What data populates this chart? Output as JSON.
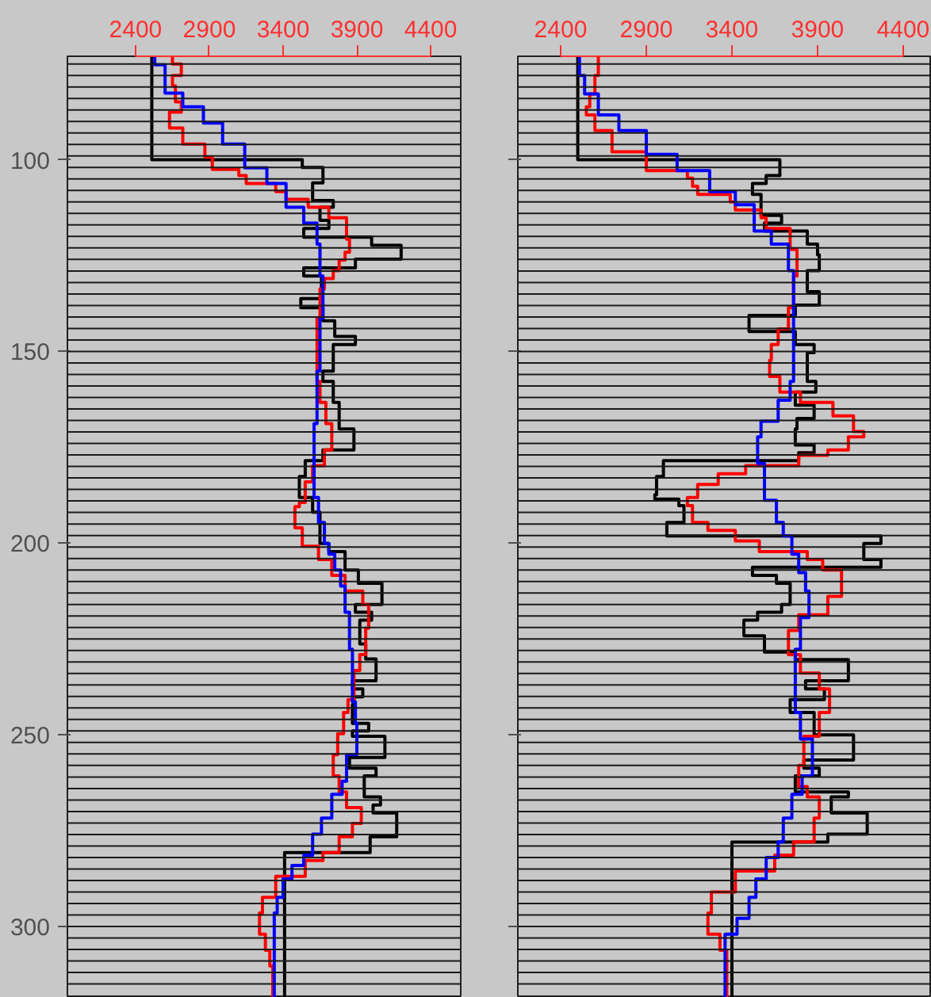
{
  "chart_data": [
    {
      "type": "line",
      "xlim": [
        1938,
        4604
      ],
      "ylim": [
        318.6,
        73
      ],
      "xticks": [
        2400,
        2900,
        3400,
        3900,
        4400
      ],
      "yticks": [
        100,
        150,
        200,
        250,
        300
      ],
      "series": [
        {
          "color": "#000000",
          "x": [
            2510,
            2510,
            3530,
            3530,
            3670,
            3670,
            3600,
            3600,
            3740,
            3740,
            3650,
            3650,
            3710,
            3710,
            3540,
            3540,
            4000,
            4000,
            4200,
            4200,
            3890,
            3890,
            3540,
            3540,
            3660,
            3660,
            3520,
            3520,
            3670,
            3670,
            3750,
            3750,
            3890,
            3890,
            3740,
            3740,
            3670,
            3670,
            3740,
            3740,
            3780,
            3780,
            3880,
            3880,
            3670,
            3670,
            3550,
            3550,
            3510,
            3510,
            3600,
            3600,
            3650,
            3650,
            3710,
            3710,
            3820,
            3820,
            3910,
            3910,
            4070,
            4070,
            3890,
            3890,
            4000,
            4000,
            3920,
            3920,
            3960,
            3960,
            4030,
            4030,
            3870,
            3870,
            3940,
            3940,
            3880,
            3880,
            3870,
            3870,
            3980,
            3980,
            3870,
            3870,
            4090,
            4090,
            3850,
            3850,
            4030,
            4030,
            3950,
            3950,
            4060,
            4060,
            4010,
            4010,
            4170,
            4170,
            3990,
            3990,
            3410,
            3410
          ],
          "values": [
            73,
            100,
            100,
            102,
            102,
            106,
            106,
            110.6,
            110.6,
            112.4,
            112.4,
            115.8,
            115.8,
            117.9,
            117.9,
            120.2,
            120.2,
            122.3,
            122.3,
            125.9,
            125.9,
            128.2,
            128.2,
            130.3,
            130.3,
            136.2,
            136.2,
            138.6,
            138.6,
            142,
            142,
            146.1,
            146.1,
            148.2,
            148.2,
            155.1,
            155.1,
            157.8,
            157.8,
            163.3,
            163.3,
            170.2,
            170.2,
            175.7,
            175.7,
            178.5,
            178.5,
            182.6,
            182.6,
            188.1,
            188.1,
            191.9,
            191.9,
            200.1,
            200.1,
            202.2,
            202.2,
            207,
            207,
            210.5,
            210.5,
            216,
            216,
            218,
            218,
            220.1,
            220.1,
            226.3,
            226.3,
            230.2,
            230.2,
            235.9,
            235.9,
            238,
            238,
            240.1,
            240.1,
            242.1,
            242.1,
            247,
            247,
            249,
            249,
            250.4,
            250.4,
            255.9,
            255.9,
            258.7,
            258.7,
            260.7,
            260.7,
            266.2,
            266.2,
            268.3,
            268.3,
            270.4,
            270.4,
            276.6,
            276.6,
            280.7,
            280.7,
            318.6
          ]
        },
        {
          "color": "#ff0000",
          "x": [
            2650,
            2650,
            2710,
            2710,
            2650,
            2650,
            2670,
            2670,
            2710,
            2710,
            2630,
            2630,
            2720,
            2720,
            2870,
            2870,
            2920,
            2920,
            3100,
            3100,
            3150,
            3150,
            3350,
            3350,
            3420,
            3420,
            3570,
            3570,
            3710,
            3710,
            3830,
            3830,
            3850,
            3850,
            3820,
            3820,
            3780,
            3780,
            3740,
            3740,
            3680,
            3680,
            3650,
            3650,
            3630,
            3630,
            3650,
            3650,
            3690,
            3690,
            3730,
            3730,
            3680,
            3680,
            3600,
            3600,
            3550,
            3550,
            3510,
            3510,
            3480,
            3480,
            3530,
            3530,
            3640,
            3640,
            3730,
            3730,
            3820,
            3820,
            3940,
            3940,
            3980,
            3980,
            3960,
            3960,
            3920,
            3920,
            3880,
            3880,
            3840,
            3840,
            3810,
            3810,
            3770,
            3770,
            3740,
            3740,
            3780,
            3780,
            3830,
            3830,
            3930,
            3930,
            3870,
            3870,
            3780,
            3780,
            3670,
            3670,
            3550,
            3550,
            3350,
            3350,
            3260,
            3260,
            3240,
            3240,
            3280,
            3280,
            3310,
            3310,
            3330,
            3330
          ],
          "values": [
            73,
            75,
            75,
            78,
            78,
            80.7,
            80.7,
            84.9,
            84.9,
            87.6,
            87.6,
            91.7,
            91.7,
            95.9,
            95.9,
            99.3,
            99.3,
            102.5,
            102.5,
            104.1,
            104.1,
            106.2,
            106.2,
            108.3,
            108.3,
            110.3,
            110.3,
            112.4,
            112.4,
            115.1,
            115.1,
            120.7,
            120.7,
            124.1,
            124.1,
            126.2,
            126.2,
            128.9,
            128.9,
            131,
            131,
            133.7,
            133.7,
            141.3,
            141.3,
            157.8,
            157.8,
            163.3,
            163.3,
            168.8,
            168.8,
            175.7,
            175.7,
            179.8,
            179.8,
            184,
            184,
            189.4,
            189.4,
            190.5,
            190.5,
            196,
            196,
            200.8,
            200.8,
            204.3,
            204.3,
            208.4,
            208.4,
            212.5,
            212.5,
            216,
            216,
            222.2,
            222.2,
            229.1,
            229.1,
            233.2,
            233.2,
            240.8,
            240.8,
            244.2,
            244.2,
            249.7,
            249.7,
            255.2,
            255.2,
            260.7,
            260.7,
            264.9,
            264.9,
            269,
            269,
            273.1,
            273.1,
            276.6,
            276.6,
            280.7,
            280.7,
            282.8,
            282.8,
            286.9,
            286.9,
            292.4,
            292.4,
            296.5,
            296.5,
            302,
            302,
            306.2,
            306.2,
            310.3,
            310.3,
            318.6
          ]
        },
        {
          "color": "#0000ff",
          "x": [
            2530,
            2530,
            2600,
            2600,
            2720,
            2720,
            2860,
            2860,
            2990,
            2990,
            3140,
            3140,
            3290,
            3290,
            3420,
            3420,
            3540,
            3540,
            3630,
            3630,
            3650,
            3650,
            3670,
            3670,
            3650,
            3650,
            3630,
            3630,
            3610,
            3610,
            3640,
            3640,
            3680,
            3680,
            3710,
            3710,
            3750,
            3750,
            3790,
            3790,
            3820,
            3820,
            3850,
            3850,
            3870,
            3870,
            3890,
            3890,
            3900,
            3900,
            3830,
            3830,
            3800,
            3800,
            3730,
            3730,
            3660,
            3660,
            3600,
            3600,
            3540,
            3540,
            3460,
            3460,
            3400,
            3400,
            3360,
            3360,
            3340,
            3340
          ],
          "values": [
            73,
            75.2,
            75.2,
            82.6,
            82.6,
            86.2,
            86.2,
            90.4,
            90.4,
            95.9,
            95.9,
            102.1,
            102.1,
            106.2,
            106.2,
            112.4,
            112.4,
            116.5,
            116.5,
            122,
            122,
            130.3,
            130.3,
            141.3,
            141.3,
            155.1,
            155.1,
            168.8,
            168.8,
            188.1,
            188.1,
            194.6,
            194.6,
            200.1,
            200.1,
            202.9,
            202.9,
            207,
            207,
            211.2,
            211.2,
            218,
            218,
            227.7,
            227.7,
            241.4,
            241.4,
            247,
            247,
            255.2,
            255.2,
            262.1,
            262.1,
            265.5,
            265.5,
            271.7,
            271.7,
            275.9,
            275.9,
            281.4,
            281.4,
            284.1,
            284.1,
            287.6,
            287.6,
            292.4,
            292.4,
            296.5,
            296.5,
            318.6
          ]
        }
      ],
      "ref_lines": [
        {
          "axis": "y",
          "value": 75,
          "color": "#1a1a1a"
        },
        {
          "axis": "y",
          "value": 78,
          "color": "#1a1a1a"
        },
        {
          "axis": "y",
          "value": 81,
          "color": "#1a1a1a"
        },
        {
          "axis": "y",
          "value": 84,
          "color": "#1a1a1a"
        },
        {
          "axis": "y",
          "value": 87,
          "color": "#1a1a1a"
        },
        {
          "axis": "y",
          "value": 90,
          "color": "#1a1a1a"
        },
        {
          "axis": "y",
          "value": 93,
          "color": "#1a1a1a"
        },
        {
          "axis": "y",
          "value": 96,
          "color": "#1a1a1a"
        },
        {
          "axis": "y",
          "value": 99,
          "color": "#1a1a1a"
        },
        {
          "axis": "y",
          "value": 102,
          "color": "#1a1a1a"
        },
        {
          "axis": "y",
          "value": 105,
          "color": "#1a1a1a"
        },
        {
          "axis": "y",
          "value": 108,
          "color": "#1a1a1a"
        },
        {
          "axis": "y",
          "value": 111,
          "color": "#1a1a1a"
        },
        {
          "axis": "y",
          "value": 114,
          "color": "#1a1a1a"
        },
        {
          "axis": "y",
          "value": 117,
          "color": "#1a1a1a"
        },
        {
          "axis": "y",
          "value": 120,
          "color": "#1a1a1a"
        },
        {
          "axis": "y",
          "value": 123,
          "color": "#1a1a1a"
        },
        {
          "axis": "y",
          "value": 126,
          "color": "#1a1a1a"
        },
        {
          "axis": "y",
          "value": 129,
          "color": "#1a1a1a"
        },
        {
          "axis": "y",
          "value": 132,
          "color": "#1a1a1a"
        },
        {
          "axis": "y",
          "value": 135,
          "color": "#1a1a1a"
        },
        {
          "axis": "y",
          "value": 138,
          "color": "#1a1a1a"
        },
        {
          "axis": "y",
          "value": 141,
          "color": "#1a1a1a"
        },
        {
          "axis": "y",
          "value": 144,
          "color": "#1a1a1a"
        },
        {
          "axis": "y",
          "value": 147,
          "color": "#1a1a1a"
        },
        {
          "axis": "y",
          "value": 150,
          "color": "#1a1a1a"
        },
        {
          "axis": "y",
          "value": 153,
          "color": "#1a1a1a"
        },
        {
          "axis": "y",
          "value": 156,
          "color": "#1a1a1a"
        },
        {
          "axis": "y",
          "value": 159,
          "color": "#1a1a1a"
        },
        {
          "axis": "y",
          "value": 162,
          "color": "#1a1a1a"
        },
        {
          "axis": "y",
          "value": 165,
          "color": "#1a1a1a"
        },
        {
          "axis": "y",
          "value": 168,
          "color": "#1a1a1a"
        },
        {
          "axis": "y",
          "value": 171,
          "color": "#1a1a1a"
        },
        {
          "axis": "y",
          "value": 174,
          "color": "#1a1a1a"
        },
        {
          "axis": "y",
          "value": 177,
          "color": "#1a1a1a"
        },
        {
          "axis": "y",
          "value": 180,
          "color": "#1a1a1a"
        },
        {
          "axis": "y",
          "value": 183,
          "color": "#1a1a1a"
        },
        {
          "axis": "y",
          "value": 186,
          "color": "#1a1a1a"
        },
        {
          "axis": "y",
          "value": 189,
          "color": "#1a1a1a"
        },
        {
          "axis": "y",
          "value": 192,
          "color": "#1a1a1a"
        },
        {
          "axis": "y",
          "value": 195,
          "color": "#1a1a1a"
        },
        {
          "axis": "y",
          "value": 198,
          "color": "#1a1a1a"
        },
        {
          "axis": "y",
          "value": 201,
          "color": "#1a1a1a"
        },
        {
          "axis": "y",
          "value": 204,
          "color": "#1a1a1a"
        },
        {
          "axis": "y",
          "value": 207,
          "color": "#1a1a1a"
        },
        {
          "axis": "y",
          "value": 210,
          "color": "#1a1a1a"
        },
        {
          "axis": "y",
          "value": 213,
          "color": "#1a1a1a"
        },
        {
          "axis": "y",
          "value": 216,
          "color": "#1a1a1a"
        },
        {
          "axis": "y",
          "value": 219,
          "color": "#1a1a1a"
        },
        {
          "axis": "y",
          "value": 222,
          "color": "#1a1a1a"
        },
        {
          "axis": "y",
          "value": 225,
          "color": "#1a1a1a"
        },
        {
          "axis": "y",
          "value": 228,
          "color": "#1a1a1a"
        },
        {
          "axis": "y",
          "value": 231,
          "color": "#1a1a1a"
        },
        {
          "axis": "y",
          "value": 234,
          "color": "#1a1a1a"
        },
        {
          "axis": "y",
          "value": 237,
          "color": "#1a1a1a"
        },
        {
          "axis": "y",
          "value": 240,
          "color": "#1a1a1a"
        },
        {
          "axis": "y",
          "value": 243,
          "color": "#1a1a1a"
        },
        {
          "axis": "y",
          "value": 246,
          "color": "#1a1a1a"
        },
        {
          "axis": "y",
          "value": 249,
          "color": "#1a1a1a"
        },
        {
          "axis": "y",
          "value": 252,
          "color": "#1a1a1a"
        },
        {
          "axis": "y",
          "value": 255,
          "color": "#1a1a1a"
        },
        {
          "axis": "y",
          "value": 258,
          "color": "#1a1a1a"
        },
        {
          "axis": "y",
          "value": 261,
          "color": "#1a1a1a"
        },
        {
          "axis": "y",
          "value": 264,
          "color": "#1a1a1a"
        },
        {
          "axis": "y",
          "value": 267,
          "color": "#1a1a1a"
        },
        {
          "axis": "y",
          "value": 270,
          "color": "#1a1a1a"
        },
        {
          "axis": "y",
          "value": 273,
          "color": "#1a1a1a"
        },
        {
          "axis": "y",
          "value": 276,
          "color": "#1a1a1a"
        },
        {
          "axis": "y",
          "value": 279,
          "color": "#1a1a1a"
        },
        {
          "axis": "y",
          "value": 282,
          "color": "#1a1a1a"
        },
        {
          "axis": "y",
          "value": 285,
          "color": "#1a1a1a"
        },
        {
          "axis": "y",
          "value": 288,
          "color": "#1a1a1a"
        },
        {
          "axis": "y",
          "value": 291,
          "color": "#1a1a1a"
        },
        {
          "axis": "y",
          "value": 294,
          "color": "#1a1a1a"
        },
        {
          "axis": "y",
          "value": 297,
          "color": "#1a1a1a"
        },
        {
          "axis": "y",
          "value": 300,
          "color": "#1a1a1a"
        },
        {
          "axis": "y",
          "value": 303,
          "color": "#1a1a1a"
        },
        {
          "axis": "y",
          "value": 306,
          "color": "#1a1a1a"
        },
        {
          "axis": "y",
          "value": 309,
          "color": "#1a1a1a"
        },
        {
          "axis": "y",
          "value": 312,
          "color": "#1a1a1a"
        },
        {
          "axis": "y",
          "value": 315,
          "color": "#1a1a1a"
        }
      ]
    },
    {
      "type": "line",
      "xlim": [
        2150,
        4567
      ],
      "ylim": [
        318.6,
        73
      ],
      "xticks": [
        2400,
        2900,
        3400,
        3900,
        4400
      ],
      "yticks": [
        100,
        150,
        200,
        250,
        300
      ],
      "tick_labels": "x",
      "series": [
        {
          "color": "#000000",
          "x": [
            2500,
            2500,
            3680,
            3680,
            3600,
            3600,
            3520,
            3520,
            3570,
            3570,
            3690,
            3690,
            3590,
            3590,
            3840,
            3840,
            3900,
            3900,
            3910,
            3910,
            3840,
            3840,
            3910,
            3910,
            3770,
            3770,
            3500,
            3500,
            3770,
            3770,
            3880,
            3880,
            3840,
            3840,
            3890,
            3890,
            3770,
            3770,
            3880,
            3880,
            3780,
            3780,
            3770,
            3770,
            3880,
            3880,
            3790,
            3790,
            3000,
            3000,
            2960,
            2960,
            2950,
            2950,
            3090,
            3090,
            3120,
            3120,
            3020,
            3020,
            4270,
            4270,
            4170,
            4170,
            4270,
            4270,
            3520,
            3520,
            3660,
            3660,
            3740,
            3740,
            3690,
            3690,
            3550,
            3550,
            3470,
            3470,
            3590,
            3590,
            3770,
            3770,
            4080,
            4080,
            3830,
            3830,
            3940,
            3940,
            3740,
            3740,
            3880,
            3880,
            4110,
            4110,
            3820,
            3820,
            3910,
            3910,
            3770,
            3770,
            4080,
            4080,
            3980,
            3980,
            4190,
            4190,
            3960,
            3960,
            3400,
            3400
          ],
          "values": [
            73,
            100,
            100,
            104.1,
            104.1,
            106.2,
            106.2,
            109,
            109,
            114.5,
            114.5,
            116.5,
            116.5,
            118.6,
            118.6,
            122,
            122,
            124.8,
            124.8,
            128.9,
            128.9,
            134.4,
            134.4,
            137.9,
            137.9,
            140.6,
            140.6,
            144.8,
            144.8,
            148.2,
            148.2,
            150.3,
            150.3,
            157.8,
            157.8,
            160.6,
            160.6,
            164,
            164,
            167.5,
            167.5,
            170.2,
            170.2,
            174.4,
            174.4,
            176.4,
            176.4,
            178.5,
            178.5,
            182.6,
            182.6,
            187.4,
            187.4,
            188.5,
            188.5,
            190.2,
            190.2,
            194.6,
            194.6,
            198.1,
            198.1,
            200.1,
            200.1,
            204.3,
            204.3,
            206.3,
            206.3,
            208.4,
            208.4,
            210.5,
            210.5,
            216,
            216,
            218,
            218,
            220.1,
            220.1,
            224.2,
            224.2,
            228.4,
            228.4,
            230.4,
            230.4,
            235.9,
            235.9,
            238,
            238,
            240.8,
            240.8,
            244.2,
            244.2,
            250,
            250,
            256.6,
            256.6,
            258.7,
            258.7,
            260.7,
            260.7,
            264.9,
            264.9,
            266.2,
            266.2,
            270.4,
            270.4,
            275.9,
            275.9,
            278,
            278,
            318.6
          ]
        },
        {
          "color": "#ff0000",
          "x": [
            2620,
            2620,
            2600,
            2600,
            2570,
            2570,
            2550,
            2550,
            2600,
            2600,
            2700,
            2700,
            2900,
            2900,
            3140,
            3140,
            3170,
            3170,
            3200,
            3200,
            3390,
            3390,
            3420,
            3420,
            3570,
            3570,
            3600,
            3600,
            3740,
            3740,
            3780,
            3780,
            3760,
            3760,
            3730,
            3730,
            3670,
            3670,
            3630,
            3630,
            3620,
            3620,
            3680,
            3680,
            3800,
            3800,
            3990,
            3990,
            4110,
            4110,
            4170,
            4170,
            4080,
            4080,
            3960,
            3960,
            3790,
            3790,
            3480,
            3480,
            3320,
            3320,
            3200,
            3200,
            3140,
            3140,
            3170,
            3170,
            3260,
            3260,
            3420,
            3420,
            3560,
            3560,
            3840,
            3840,
            3930,
            3930,
            4040,
            4040,
            3960,
            3960,
            3790,
            3790,
            3730,
            3730,
            3800,
            3800,
            3910,
            3910,
            3970,
            3970,
            3910,
            3910,
            3820,
            3820,
            3790,
            3790,
            3840,
            3840,
            3910,
            3910,
            3880,
            3880,
            3760,
            3760,
            3650,
            3650,
            3420,
            3420,
            3280,
            3280,
            3260,
            3260,
            3330,
            3330,
            3370,
            3370
          ],
          "values": [
            73,
            78,
            78,
            82.8,
            82.8,
            86.2,
            86.2,
            88.3,
            88.3,
            92.4,
            92.4,
            97.9,
            97.9,
            102.8,
            102.8,
            104.8,
            104.8,
            106.9,
            106.9,
            109,
            109,
            111,
            111,
            113.1,
            113.1,
            115.1,
            115.1,
            117.9,
            117.9,
            123.4,
            123.4,
            130.3,
            130.3,
            138.6,
            138.6,
            144.1,
            144.1,
            148.2,
            148.2,
            152.3,
            152.3,
            156.5,
            156.5,
            160.6,
            160.6,
            163.3,
            163.3,
            166.8,
            166.8,
            170.9,
            170.9,
            172.3,
            172.3,
            175.7,
            175.7,
            177.1,
            177.1,
            179.8,
            179.8,
            181.9,
            181.9,
            184.7,
            184.7,
            188.1,
            188.1,
            190.2,
            190.2,
            194.6,
            194.6,
            196.7,
            196.7,
            199.4,
            199.4,
            202.2,
            202.2,
            204.3,
            204.3,
            207,
            207,
            213.9,
            213.9,
            218.7,
            218.7,
            222.8,
            222.8,
            229.1,
            229.1,
            233.9,
            233.9,
            238,
            238,
            244.2,
            244.2,
            250.4,
            250.4,
            258,
            258,
            263.5,
            263.5,
            266.2,
            266.2,
            271.7,
            271.7,
            277.9,
            277.9,
            281.4,
            281.4,
            285.5,
            285.5,
            291,
            291,
            296.5,
            296.5,
            302,
            302,
            306.2,
            306.2,
            318.6
          ]
        },
        {
          "color": "#0000ff",
          "x": [
            2510,
            2510,
            2540,
            2540,
            2620,
            2620,
            2740,
            2740,
            2900,
            2900,
            3080,
            3080,
            3270,
            3270,
            3420,
            3420,
            3530,
            3530,
            3630,
            3630,
            3730,
            3730,
            3760,
            3760,
            3740,
            3740,
            3670,
            3670,
            3570,
            3570,
            3550,
            3550,
            3590,
            3590,
            3660,
            3660,
            3700,
            3700,
            3750,
            3750,
            3790,
            3790,
            3830,
            3830,
            3850,
            3850,
            3800,
            3800,
            3770,
            3770,
            3800,
            3800,
            3870,
            3870,
            3810,
            3810,
            3750,
            3750,
            3700,
            3700,
            3670,
            3670,
            3600,
            3600,
            3540,
            3540,
            3500,
            3500,
            3430,
            3430,
            3360,
            3360
          ],
          "values": [
            73,
            78,
            78,
            82.8,
            82.8,
            88.3,
            88.3,
            92.4,
            92.4,
            98.6,
            98.6,
            102.8,
            102.8,
            108.3,
            108.3,
            111.7,
            111.7,
            118.6,
            118.6,
            122,
            122,
            128.9,
            128.9,
            157.8,
            157.8,
            162.7,
            162.7,
            168.2,
            168.2,
            172.3,
            172.3,
            179.2,
            179.2,
            188.8,
            188.8,
            194.6,
            194.6,
            198.1,
            198.1,
            202.9,
            202.9,
            207.7,
            207.7,
            212.5,
            212.5,
            219.4,
            219.4,
            227.7,
            227.7,
            244.2,
            244.2,
            251.1,
            251.1,
            260.7,
            260.7,
            265.5,
            265.5,
            271.7,
            271.7,
            277.9,
            277.9,
            282,
            282,
            287.6,
            287.6,
            292.4,
            292.4,
            297.9,
            297.9,
            302,
            302,
            318.6
          ]
        }
      ],
      "ref_lines": [
        {
          "axis": "y",
          "value": 75,
          "color": "#1a1a1a"
        },
        {
          "axis": "y",
          "value": 78,
          "color": "#1a1a1a"
        },
        {
          "axis": "y",
          "value": 81,
          "color": "#1a1a1a"
        },
        {
          "axis": "y",
          "value": 84,
          "color": "#1a1a1a"
        },
        {
          "axis": "y",
          "value": 87,
          "color": "#1a1a1a"
        },
        {
          "axis": "y",
          "value": 90,
          "color": "#1a1a1a"
        },
        {
          "axis": "y",
          "value": 93,
          "color": "#1a1a1a"
        },
        {
          "axis": "y",
          "value": 96,
          "color": "#1a1a1a"
        },
        {
          "axis": "y",
          "value": 99,
          "color": "#1a1a1a"
        },
        {
          "axis": "y",
          "value": 102,
          "color": "#1a1a1a"
        },
        {
          "axis": "y",
          "value": 105,
          "color": "#1a1a1a"
        },
        {
          "axis": "y",
          "value": 108,
          "color": "#1a1a1a"
        },
        {
          "axis": "y",
          "value": 111,
          "color": "#1a1a1a"
        },
        {
          "axis": "y",
          "value": 114,
          "color": "#1a1a1a"
        },
        {
          "axis": "y",
          "value": 117,
          "color": "#1a1a1a"
        },
        {
          "axis": "y",
          "value": 120,
          "color": "#1a1a1a"
        },
        {
          "axis": "y",
          "value": 123,
          "color": "#1a1a1a"
        },
        {
          "axis": "y",
          "value": 126,
          "color": "#1a1a1a"
        },
        {
          "axis": "y",
          "value": 129,
          "color": "#1a1a1a"
        },
        {
          "axis": "y",
          "value": 132,
          "color": "#1a1a1a"
        },
        {
          "axis": "y",
          "value": 135,
          "color": "#1a1a1a"
        },
        {
          "axis": "y",
          "value": 138,
          "color": "#1a1a1a"
        },
        {
          "axis": "y",
          "value": 141,
          "color": "#1a1a1a"
        },
        {
          "axis": "y",
          "value": 144,
          "color": "#1a1a1a"
        },
        {
          "axis": "y",
          "value": 147,
          "color": "#1a1a1a"
        },
        {
          "axis": "y",
          "value": 150,
          "color": "#1a1a1a"
        },
        {
          "axis": "y",
          "value": 153,
          "color": "#1a1a1a"
        },
        {
          "axis": "y",
          "value": 156,
          "color": "#1a1a1a"
        },
        {
          "axis": "y",
          "value": 159,
          "color": "#1a1a1a"
        },
        {
          "axis": "y",
          "value": 162,
          "color": "#1a1a1a"
        },
        {
          "axis": "y",
          "value": 165,
          "color": "#1a1a1a"
        },
        {
          "axis": "y",
          "value": 168,
          "color": "#1a1a1a"
        },
        {
          "axis": "y",
          "value": 171,
          "color": "#1a1a1a"
        },
        {
          "axis": "y",
          "value": 174,
          "color": "#1a1a1a"
        },
        {
          "axis": "y",
          "value": 177,
          "color": "#1a1a1a"
        },
        {
          "axis": "y",
          "value": 180,
          "color": "#1a1a1a"
        },
        {
          "axis": "y",
          "value": 183,
          "color": "#1a1a1a"
        },
        {
          "axis": "y",
          "value": 186,
          "color": "#1a1a1a"
        },
        {
          "axis": "y",
          "value": 189,
          "color": "#1a1a1a"
        },
        {
          "axis": "y",
          "value": 192,
          "color": "#1a1a1a"
        },
        {
          "axis": "y",
          "value": 195,
          "color": "#1a1a1a"
        },
        {
          "axis": "y",
          "value": 198,
          "color": "#1a1a1a"
        },
        {
          "axis": "y",
          "value": 201,
          "color": "#1a1a1a"
        },
        {
          "axis": "y",
          "value": 204,
          "color": "#1a1a1a"
        },
        {
          "axis": "y",
          "value": 207,
          "color": "#1a1a1a"
        },
        {
          "axis": "y",
          "value": 210,
          "color": "#1a1a1a"
        },
        {
          "axis": "y",
          "value": 213,
          "color": "#1a1a1a"
        },
        {
          "axis": "y",
          "value": 216,
          "color": "#1a1a1a"
        },
        {
          "axis": "y",
          "value": 219,
          "color": "#1a1a1a"
        },
        {
          "axis": "y",
          "value": 222,
          "color": "#1a1a1a"
        },
        {
          "axis": "y",
          "value": 225,
          "color": "#1a1a1a"
        },
        {
          "axis": "y",
          "value": 228,
          "color": "#1a1a1a"
        },
        {
          "axis": "y",
          "value": 231,
          "color": "#1a1a1a"
        },
        {
          "axis": "y",
          "value": 234,
          "color": "#1a1a1a"
        },
        {
          "axis": "y",
          "value": 237,
          "color": "#1a1a1a"
        },
        {
          "axis": "y",
          "value": 240,
          "color": "#1a1a1a"
        },
        {
          "axis": "y",
          "value": 243,
          "color": "#1a1a1a"
        },
        {
          "axis": "y",
          "value": 246,
          "color": "#1a1a1a"
        },
        {
          "axis": "y",
          "value": 249,
          "color": "#1a1a1a"
        },
        {
          "axis": "y",
          "value": 252,
          "color": "#1a1a1a"
        },
        {
          "axis": "y",
          "value": 255,
          "color": "#1a1a1a"
        },
        {
          "axis": "y",
          "value": 258,
          "color": "#1a1a1a"
        },
        {
          "axis": "y",
          "value": 261,
          "color": "#1a1a1a"
        },
        {
          "axis": "y",
          "value": 264,
          "color": "#1a1a1a"
        },
        {
          "axis": "y",
          "value": 267,
          "color": "#1a1a1a"
        },
        {
          "axis": "y",
          "value": 270,
          "color": "#1a1a1a"
        },
        {
          "axis": "y",
          "value": 273,
          "color": "#1a1a1a"
        },
        {
          "axis": "y",
          "value": 276,
          "color": "#1a1a1a"
        },
        {
          "axis": "y",
          "value": 279,
          "color": "#1a1a1a"
        },
        {
          "axis": "y",
          "value": 282,
          "color": "#1a1a1a"
        },
        {
          "axis": "y",
          "value": 285,
          "color": "#1a1a1a"
        },
        {
          "axis": "y",
          "value": 288,
          "color": "#1a1a1a"
        },
        {
          "axis": "y",
          "value": 291,
          "color": "#1a1a1a"
        },
        {
          "axis": "y",
          "value": 294,
          "color": "#1a1a1a"
        },
        {
          "axis": "y",
          "value": 297,
          "color": "#1a1a1a"
        },
        {
          "axis": "y",
          "value": 300,
          "color": "#1a1a1a"
        },
        {
          "axis": "y",
          "value": 303,
          "color": "#1a1a1a"
        },
        {
          "axis": "y",
          "value": 306,
          "color": "#1a1a1a"
        },
        {
          "axis": "y",
          "value": 309,
          "color": "#1a1a1a"
        },
        {
          "axis": "y",
          "value": 312,
          "color": "#1a1a1a"
        },
        {
          "axis": "y",
          "value": 315,
          "color": "#1a1a1a"
        }
      ]
    }
  ]
}
